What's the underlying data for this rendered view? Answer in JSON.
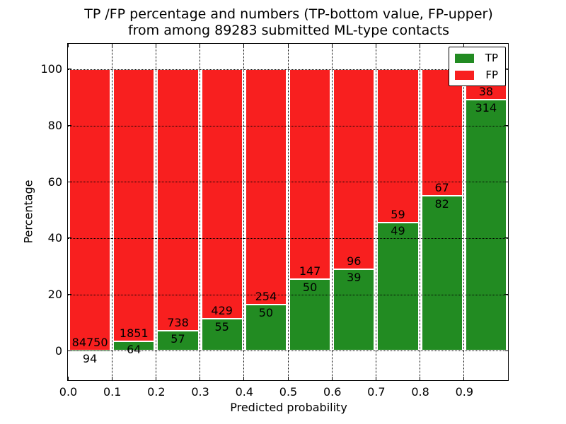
{
  "figure": {
    "title_line1": "TP /FP percentage and numbers (TP-bottom value, FP-upper)",
    "title_line2": "from among 89283 submitted ML-type contacts"
  },
  "chart_data": {
    "type": "bar",
    "stacked": true,
    "normalized": "each bin scaled to 100%",
    "title": "TP /FP percentage and numbers (TP-bottom value, FP-upper) from among 89283 submitted ML-type contacts",
    "total_contacts": 89283,
    "xlabel": "Predicted probability",
    "ylabel": "Percentage",
    "x_tick_labels": [
      "0.0",
      "0.1",
      "0.2",
      "0.3",
      "0.4",
      "0.5",
      "0.6",
      "0.7",
      "0.8",
      "0.9"
    ],
    "y_tick_values": [
      0,
      20,
      40,
      60,
      80,
      100
    ],
    "y_tick_labels": [
      "0",
      "20",
      "40",
      "60",
      "80",
      "100"
    ],
    "xlim": [
      0.0,
      1.0
    ],
    "ylim": [
      -10.5,
      109
    ],
    "bin_width": 0.1,
    "bin_starts": [
      0.0,
      0.1,
      0.2,
      0.3,
      0.4,
      0.5,
      0.6,
      0.7,
      0.8,
      0.9
    ],
    "series": [
      {
        "name": "TP",
        "color": "#228b22",
        "values": [
          94,
          64,
          57,
          55,
          50,
          50,
          39,
          49,
          82,
          314
        ]
      },
      {
        "name": "FP",
        "color": "#f81f1f",
        "values": [
          84750,
          1851,
          738,
          429,
          254,
          147,
          96,
          59,
          67,
          38
        ]
      }
    ],
    "tp_percent_of_bin": [
      0.1,
      3.3,
      7.2,
      11.4,
      16.4,
      25.4,
      28.9,
      45.4,
      55.0,
      89.2
    ],
    "grid": true,
    "legend": {
      "position": "upper right",
      "entries": [
        {
          "label": "TP",
          "color": "#228b22"
        },
        {
          "label": "FP",
          "color": "#f81f1f"
        }
      ]
    }
  }
}
